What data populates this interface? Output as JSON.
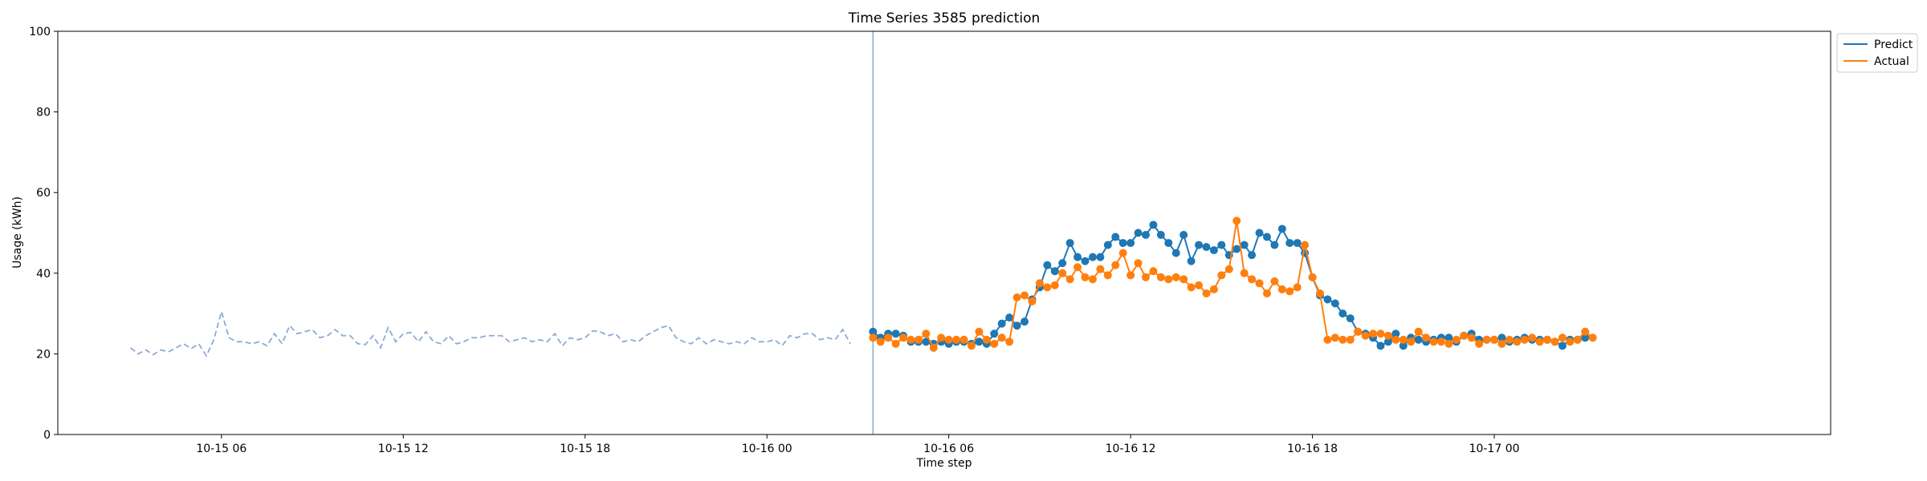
{
  "chart_data": {
    "type": "line",
    "title": "Time Series 3585 prediction",
    "xlabel": "Time step",
    "ylabel": "Usage (kWh)",
    "ylim": [
      0,
      100
    ],
    "yticks": [
      "0",
      "20",
      "40",
      "60",
      "80",
      "100"
    ],
    "xticks": [
      {
        "label": "10-15 06",
        "hour": 6
      },
      {
        "label": "10-15 12",
        "hour": 12
      },
      {
        "label": "10-15 18",
        "hour": 18
      },
      {
        "label": "10-16 00",
        "hour": 24
      },
      {
        "label": "10-16 06",
        "hour": 30
      },
      {
        "label": "10-16 12",
        "hour": 36
      },
      {
        "label": "10-16 18",
        "hour": 42
      },
      {
        "label": "10-17 00",
        "hour": 48
      }
    ],
    "xlim_hours": [
      0.6,
      59.1
    ],
    "legend": {
      "placement": "outside-top-right"
    },
    "colors": {
      "history": "#8da9d6",
      "predict": "#1f77b4",
      "actual": "#ff7f0e",
      "divider": "#8da9d6"
    },
    "forecast_start": "10-16 03:30",
    "forecast_start_hour": 27.5,
    "history": {
      "start": "10-15 03:00",
      "start_hour": 3.0,
      "step_hours": 0.25,
      "values": [
        21.5,
        20,
        21,
        19.8,
        21,
        20.5,
        21.5,
        22.5,
        21.3,
        22.5,
        19.5,
        23.5,
        30.5,
        24,
        23,
        23,
        22.5,
        23,
        22,
        25,
        22.5,
        27,
        25,
        25.5,
        26,
        24,
        24.5,
        26,
        24.5,
        24.5,
        22.5,
        22.3,
        24.5,
        21.5,
        26.5,
        23,
        25,
        25.3,
        23,
        25.5,
        23,
        22.5,
        24.5,
        22.5,
        23,
        24,
        24,
        24.5,
        24.5,
        24.5,
        23,
        23.5,
        24,
        23,
        23.5,
        23,
        25,
        22,
        24,
        23.5,
        24,
        25.7,
        25.5,
        24.5,
        25,
        23,
        23.5,
        23,
        24.5,
        25.5,
        26.5,
        27,
        24,
        23,
        22.5,
        24,
        22.5,
        23.5,
        23,
        22.5,
        23,
        22.5,
        24,
        23,
        23,
        23.5,
        22,
        24.5,
        24,
        25,
        25,
        23.5,
        24,
        23.5,
        26,
        22.5
      ]
    },
    "series": [
      {
        "name": "Predict",
        "start": "10-16 03:30",
        "start_hour": 27.5,
        "step_hours": 0.25,
        "values": [
          25.5,
          24,
          25,
          25,
          24.5,
          23,
          23,
          23,
          22.5,
          23,
          22.5,
          23,
          23,
          22.5,
          23,
          22.5,
          25,
          27.5,
          29,
          27,
          28,
          33.5,
          36.5,
          42,
          40.5,
          42.5,
          47.5,
          44,
          43,
          44,
          44,
          47,
          49,
          47.5,
          47.5,
          50,
          49.5,
          52,
          49.5,
          47.5,
          45,
          49.5,
          43,
          47,
          46.5,
          45.7,
          47,
          44.5,
          46,
          47,
          44.5,
          50,
          49,
          47,
          51,
          47.5,
          47.5,
          45,
          39,
          34.5,
          33.5,
          32.5,
          30,
          28.8,
          25.5,
          25,
          24,
          22,
          23,
          25,
          22,
          24,
          23.5,
          23,
          23.5,
          24,
          24,
          23,
          24.5,
          25,
          23.5,
          23.5,
          23.5,
          24,
          23,
          23.5,
          24,
          23.5,
          23.5,
          23.5,
          23,
          22,
          23.5,
          23.5,
          24
        ]
      },
      {
        "name": "Actual",
        "start": "10-16 03:30",
        "start_hour": 27.5,
        "step_hours": 0.25,
        "values": [
          24,
          23,
          24,
          22.5,
          24,
          23.5,
          23.5,
          25,
          21.5,
          24,
          23.5,
          23.5,
          23.5,
          22,
          25.5,
          23.5,
          22.5,
          24,
          23,
          34,
          34.5,
          33,
          37.5,
          36.5,
          37,
          40,
          38.5,
          41.5,
          39,
          38.5,
          41,
          39.5,
          42,
          45,
          39.5,
          42.5,
          39,
          40.5,
          39,
          38.5,
          39,
          38.5,
          36.5,
          37,
          35,
          36,
          39.5,
          41,
          53,
          40,
          38.5,
          37.5,
          35,
          38,
          36,
          35.5,
          36.5,
          47,
          39,
          35,
          23.5,
          24,
          23.5,
          23.5,
          25.5,
          24.5,
          25,
          25,
          24.5,
          23.5,
          23.5,
          23,
          25.5,
          24,
          23,
          23,
          22.5,
          23.5,
          24.5,
          24,
          22.5,
          23.5,
          23.5,
          22.5,
          23.5,
          23,
          23.5,
          24,
          23,
          23.5,
          23,
          24,
          23,
          23.5,
          25.5,
          24
        ]
      }
    ]
  }
}
